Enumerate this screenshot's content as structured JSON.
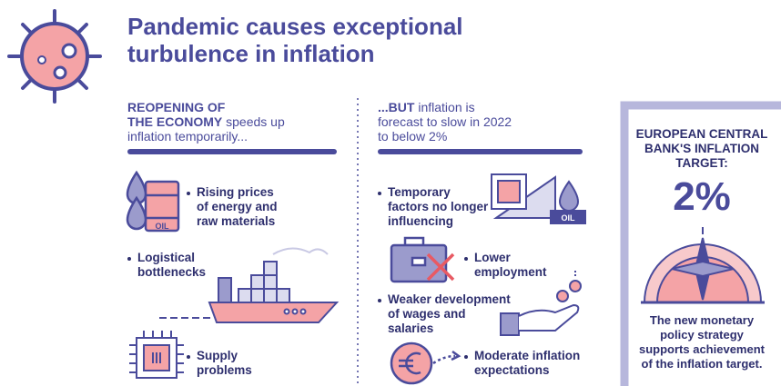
{
  "title": {
    "lines": [
      "Pandemic causes exceptional",
      "turbulence in inflation"
    ]
  },
  "left": {
    "header": {
      "bold": [
        "REOPENING OF",
        "THE ECONOMY"
      ],
      "rest": [
        "speeds up",
        "inflation temporarily..."
      ]
    },
    "items": [
      {
        "lines": [
          "Rising prices",
          "of energy and",
          "raw materials"
        ]
      },
      {
        "lines": [
          "Logistical",
          "bottlenecks"
        ]
      },
      {
        "lines": [
          "Supply",
          "problems"
        ]
      }
    ]
  },
  "middle": {
    "header": {
      "bold": [
        "...BUT"
      ],
      "rest": [
        "inflation is",
        "forecast to slow in 2022",
        "to below 2%"
      ]
    },
    "items": [
      {
        "lines": [
          "Temporary",
          "factors no longer",
          "influencing"
        ]
      },
      {
        "lines": [
          "Lower",
          "employment"
        ]
      },
      {
        "lines": [
          "Weaker development",
          "of wages and",
          "salaries"
        ]
      },
      {
        "lines": [
          "Moderate inflation",
          "expectations"
        ]
      }
    ]
  },
  "icon_labels": {
    "oil_drum": "OIL",
    "oil_chart": "OIL"
  },
  "target": {
    "heading": [
      "EUROPEAN CENTRAL",
      "BANK'S INFLATION",
      "TARGET:"
    ],
    "value": "2%",
    "note": [
      "The new monetary",
      "policy strategy",
      "supports achievement",
      "of the inflation target."
    ]
  }
}
